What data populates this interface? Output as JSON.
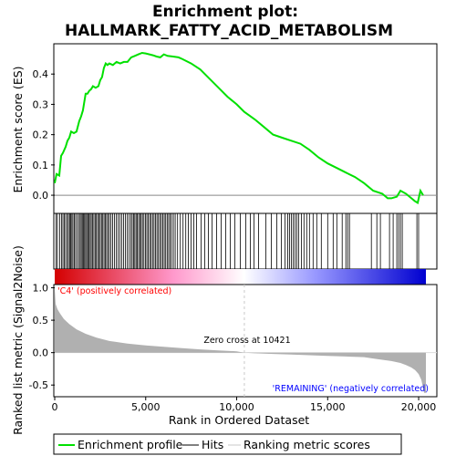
{
  "chart_data": {
    "type": "line",
    "title": [
      "Enrichment plot:",
      "HALLMARK_FATTY_ACID_METABOLISM"
    ],
    "top_panel": {
      "ylabel": "Enrichment score (ES)",
      "yticks": [
        "0.0",
        "0.1",
        "0.2",
        "0.3",
        "0.4"
      ],
      "ylim": [
        -0.06,
        0.5
      ],
      "series": [
        {
          "name": "Enrichment profile",
          "color": "#00e000",
          "x": [
            0,
            100,
            250,
            350,
            450,
            600,
            700,
            800,
            900,
            1050,
            1200,
            1350,
            1450,
            1550,
            1700,
            1800,
            1900,
            2000,
            2100,
            2250,
            2400,
            2500,
            2600,
            2700,
            2800,
            2900,
            3000,
            3200,
            3400,
            3600,
            3800,
            4000,
            4200,
            4400,
            4600,
            4800,
            5000,
            5200,
            5400,
            5600,
            5800,
            6000,
            6200,
            6500,
            6800,
            7000,
            7500,
            8000,
            8500,
            9000,
            9500,
            10000,
            10421,
            11000,
            11500,
            12000,
            12500,
            13000,
            13500,
            14000,
            14500,
            15000,
            15500,
            16000,
            16500,
            17000,
            17500,
            18000,
            18300,
            18500,
            18800,
            19000,
            19300,
            19600,
            19800,
            19950,
            20100,
            20250
          ],
          "y": [
            0.04,
            0.07,
            0.065,
            0.13,
            0.14,
            0.16,
            0.18,
            0.19,
            0.21,
            0.205,
            0.21,
            0.245,
            0.26,
            0.28,
            0.335,
            0.335,
            0.345,
            0.35,
            0.36,
            0.355,
            0.36,
            0.38,
            0.39,
            0.42,
            0.435,
            0.43,
            0.435,
            0.43,
            0.44,
            0.435,
            0.44,
            0.44,
            0.455,
            0.46,
            0.465,
            0.47,
            0.468,
            0.465,
            0.462,
            0.458,
            0.455,
            0.465,
            0.46,
            0.458,
            0.455,
            0.45,
            0.435,
            0.415,
            0.385,
            0.355,
            0.325,
            0.3,
            0.275,
            0.25,
            0.225,
            0.2,
            0.19,
            0.18,
            0.17,
            0.15,
            0.125,
            0.105,
            0.09,
            0.075,
            0.06,
            0.04,
            0.015,
            0.005,
            -0.01,
            -0.01,
            -0.005,
            0.015,
            0.005,
            -0.01,
            -0.02,
            -0.025,
            0.015,
            0.0
          ]
        }
      ]
    },
    "hits_panel": {
      "series_name": "Hits",
      "color": "#000000",
      "hits": [
        80,
        150,
        280,
        380,
        450,
        520,
        600,
        690,
        750,
        820,
        880,
        940,
        1000,
        1080,
        1150,
        1240,
        1320,
        1400,
        1460,
        1520,
        1580,
        1640,
        1700,
        1760,
        1820,
        1880,
        1950,
        2010,
        2080,
        2150,
        2220,
        2290,
        2360,
        2430,
        2500,
        2570,
        2640,
        2710,
        2780,
        2850,
        2920,
        3000,
        3090,
        3180,
        3280,
        3380,
        3480,
        3580,
        3680,
        3780,
        3880,
        3980,
        4080,
        4180,
        4260,
        4330,
        4400,
        4470,
        4540,
        4610,
        4680,
        4750,
        4820,
        4900,
        4980,
        5060,
        5140,
        5220,
        5300,
        5380,
        5460,
        5540,
        5620,
        5700,
        5780,
        5860,
        5940,
        6020,
        6100,
        6180,
        6260,
        6340,
        6420,
        6520,
        6620,
        6750,
        6900,
        7050,
        7200,
        7350,
        7500,
        7650,
        7800,
        8050,
        8250,
        8450,
        8650,
        8900,
        9150,
        9400,
        9650,
        9900,
        10200,
        10500,
        10750,
        10950,
        11200,
        11600,
        11900,
        12200,
        12450,
        12650,
        12800,
        12900,
        13000,
        13100,
        13200,
        13300,
        13400,
        13550,
        13700,
        13850,
        14000,
        14200,
        14400,
        14650,
        15000,
        15300,
        15500,
        15800,
        16000,
        16100,
        16200,
        17400,
        17700,
        17900,
        18400,
        18600,
        18800,
        18900,
        19000,
        19100,
        19900,
        20000
      ]
    },
    "rank_bar": {
      "gradient": [
        "#d40000",
        "#ff99cc",
        "#ffffff",
        "#9999ff",
        "#0000d0"
      ]
    },
    "metric_panel": {
      "ylabel": "Ranked list metric (Signal2Noise)",
      "xlabel": "Rank in Ordered Dataset",
      "yticks": [
        "-0.5",
        "0.0",
        "0.5",
        "1.0"
      ],
      "ylim": [
        -0.68,
        1.05
      ],
      "xticks": [
        "0",
        "5,000",
        "10,000",
        "15,000",
        "20,000"
      ],
      "xlim": [
        0,
        21000
      ],
      "n_genes": 20400,
      "fill_color": "#b0b0b0",
      "x": [
        0,
        50,
        150,
        300,
        500,
        800,
        1200,
        1700,
        2300,
        3000,
        4000,
        5000,
        6000,
        7000,
        8000,
        9000,
        10000,
        10421,
        11000,
        12000,
        13000,
        14000,
        15000,
        16000,
        17000,
        17500,
        18000,
        18500,
        19000,
        19300,
        19600,
        19800,
        20000,
        20150,
        20300,
        20400
      ],
      "y": [
        0.98,
        0.75,
        0.67,
        0.6,
        0.52,
        0.44,
        0.36,
        0.29,
        0.23,
        0.18,
        0.14,
        0.11,
        0.09,
        0.07,
        0.05,
        0.035,
        0.02,
        0.0,
        -0.01,
        -0.02,
        -0.03,
        -0.04,
        -0.05,
        -0.06,
        -0.07,
        -0.09,
        -0.11,
        -0.13,
        -0.16,
        -0.19,
        -0.23,
        -0.27,
        -0.33,
        -0.42,
        -0.62,
        -0.62
      ],
      "annotations": {
        "pos_label": "'C4' (positively correlated)",
        "neg_label": "'REMAINING' (negatively correlated)",
        "zero_cross": "Zero cross at 10421",
        "zero_cross_rank": 10421,
        "pos_color": "#ff0000",
        "neg_color": "#0000ff"
      }
    },
    "legend": {
      "items": [
        {
          "label": "Enrichment profile",
          "color": "#00e000"
        },
        {
          "label": "Hits",
          "color": "#000000"
        },
        {
          "label": "Ranking metric scores",
          "color": "#c8c8c8"
        }
      ]
    }
  }
}
